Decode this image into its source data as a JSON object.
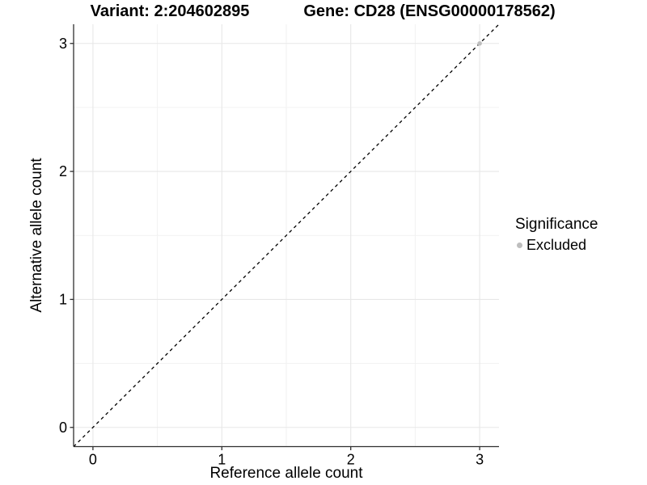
{
  "titles": {
    "left": "Variant: 2:204602895",
    "right": "Gene: CD28 (ENSG00000178562)"
  },
  "chart_data": {
    "type": "scatter",
    "title": "Variant: 2:204602895 — Gene: CD28 (ENSG00000178562)",
    "xlabel": "Reference allele count",
    "ylabel": "Alternative allele count",
    "xlim": [
      -0.15,
      3.15
    ],
    "ylim": [
      -0.15,
      3.15
    ],
    "x_ticks": [
      0,
      1,
      2,
      3
    ],
    "y_ticks": [
      0,
      1,
      2,
      3
    ],
    "x_minor_ticks": [
      0.5,
      1.5,
      2.5
    ],
    "y_minor_ticks": [
      0.5,
      1.5,
      2.5
    ],
    "grid": "major+minor",
    "legend": {
      "title": "Significance",
      "position": "right",
      "entries": [
        {
          "label": "Excluded",
          "color": "#bebebe"
        }
      ]
    },
    "series": [
      {
        "name": "Excluded",
        "color": "#bebebe",
        "marker": "circle",
        "points": [
          [
            3,
            3
          ]
        ]
      }
    ],
    "reference_line": {
      "type": "identity",
      "slope": 1,
      "intercept": 0,
      "style": "dashed",
      "color": "#000000"
    },
    "colors": {
      "grid_major": "#e7e7e7",
      "grid_minor": "#f1f1f1",
      "axis_line": "#2f2f2f",
      "text": "#000000",
      "panel_background": "#ffffff"
    }
  }
}
